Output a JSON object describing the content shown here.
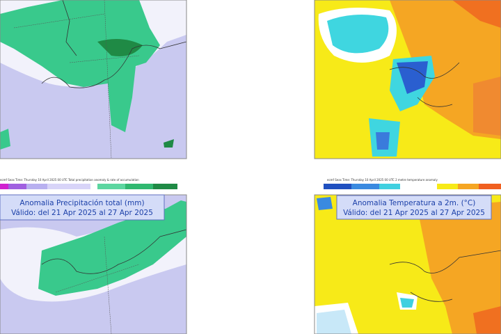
{
  "panels": [
    {
      "header": "ecmf  Seas Time: Thursday 10 April 2025 00 UTC  Total precipitation anomaly & rate of accumulation",
      "title": "Anomalia Precipitación total (mm)",
      "valid": "Válido: del 21 Apr 2025 al 27 Apr 2025"
    },
    {
      "header": "ecmf  Seas Time: Thursday 10 April 2025 00 UTC  2 metre temperature anomaly",
      "title": "Anomalia Temperatura a 2m. (°C)",
      "valid": "Válido: del 21 Apr 2025 al 27 Apr 2025"
    }
  ]
}
